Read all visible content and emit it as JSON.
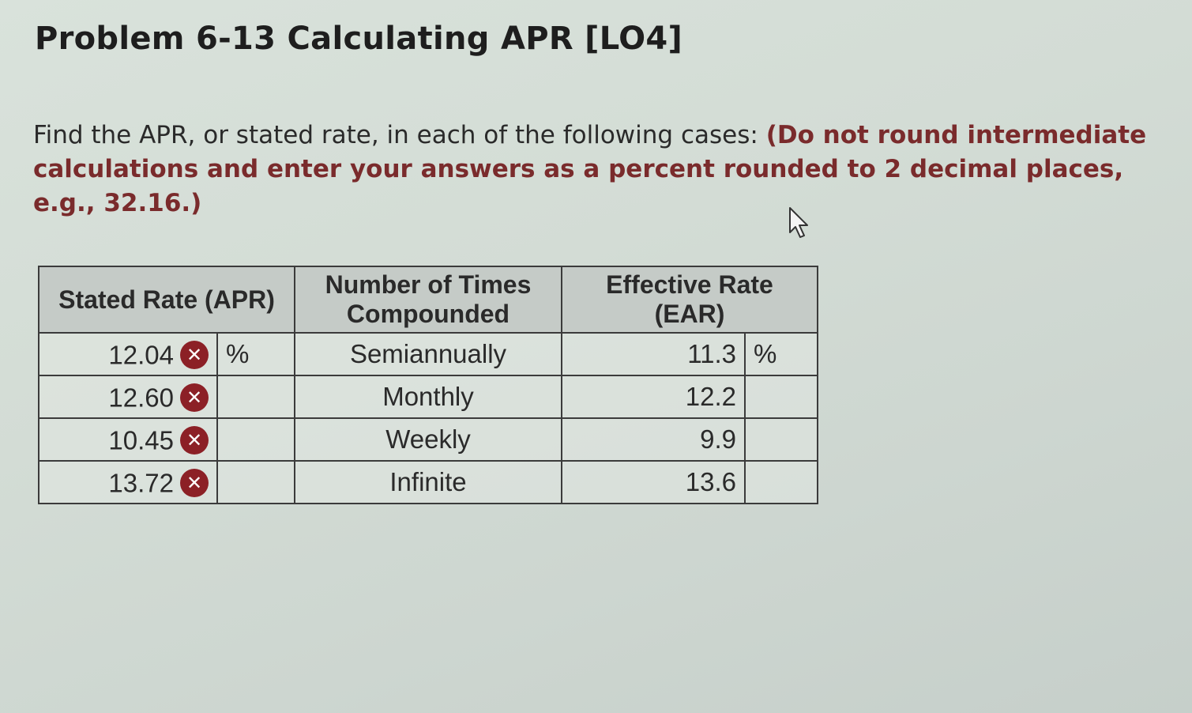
{
  "title": "Problem 6-13 Calculating APR [LO4]",
  "instructions": {
    "text": "Find the APR, or stated rate, in each of the following cases:",
    "note": "(Do not round intermediate calculations and enter your answers as a percent rounded to 2 decimal places, e.g., 32.16.)"
  },
  "table": {
    "headers": {
      "apr": "Stated Rate (APR)",
      "times": "Number of Times Compounded",
      "ear": "Effective Rate (EAR)"
    },
    "percent_sign": "%",
    "error_icon_glyph": "✕",
    "rows": [
      {
        "apr": "12.04",
        "apr_unit": "%",
        "times": "Semiannually",
        "ear": "11.3",
        "ear_unit": "%"
      },
      {
        "apr": "12.60",
        "apr_unit": "",
        "times": "Monthly",
        "ear": "12.2",
        "ear_unit": ""
      },
      {
        "apr": "10.45",
        "apr_unit": "",
        "times": "Weekly",
        "ear": "9.9",
        "ear_unit": ""
      },
      {
        "apr": "13.72",
        "apr_unit": "",
        "times": "Infinite",
        "ear": "13.6",
        "ear_unit": ""
      }
    ]
  },
  "colors": {
    "error_icon": "#8c2026",
    "note_text": "#7a2b2c",
    "header_bg": "#c5cbc7"
  },
  "icons": [
    "error-icon",
    "mouse-pointer-icon"
  ]
}
